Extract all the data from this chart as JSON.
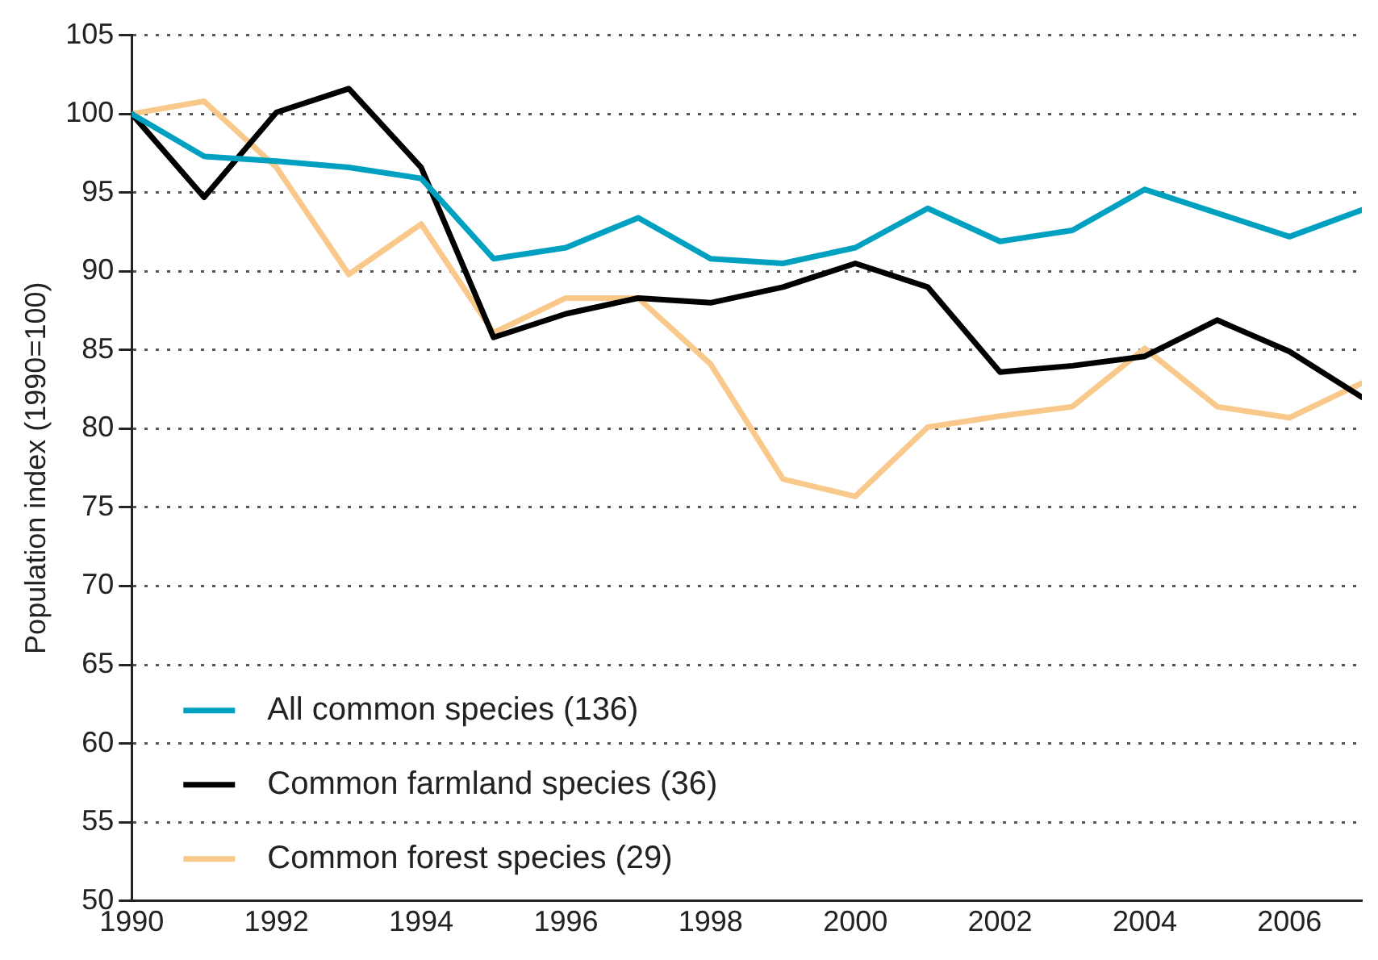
{
  "chart_data": {
    "type": "line",
    "ylabel": "Population index (1990=100)",
    "x": [
      1990,
      1991,
      1992,
      1993,
      1994,
      1995,
      1996,
      1997,
      1998,
      1999,
      2000,
      2001,
      2002,
      2003,
      2004,
      2005,
      2006,
      2007
    ],
    "xlim": [
      1990,
      2007
    ],
    "xticks": [
      1990,
      1992,
      1994,
      1996,
      1998,
      2000,
      2002,
      2004,
      2006
    ],
    "ylim": [
      50,
      105
    ],
    "yticks": [
      50,
      55,
      60,
      65,
      70,
      75,
      80,
      85,
      90,
      95,
      100,
      105
    ],
    "grid": "y",
    "legend": "bottom left",
    "marker": "none",
    "line_style": "solid",
    "series": [
      {
        "name": "All common species (136)",
        "color": "#00a0c0",
        "values": [
          100,
          97.3,
          97.0,
          96.6,
          95.9,
          90.8,
          91.5,
          93.4,
          90.8,
          90.5,
          91.5,
          94.0,
          91.9,
          92.6,
          95.2,
          93.7,
          92.2,
          93.9
        ]
      },
      {
        "name": "Common farmland species (36)",
        "color": "#000000",
        "values": [
          100,
          94.7,
          100.1,
          101.6,
          96.6,
          85.8,
          87.3,
          88.3,
          88.0,
          89.0,
          90.5,
          89.0,
          83.6,
          84.0,
          84.6,
          86.9,
          84.9,
          82.0
        ]
      },
      {
        "name": "Common forest species (29)",
        "color": "#f8c98a",
        "values": [
          100,
          100.8,
          96.6,
          89.8,
          93.0,
          86.1,
          88.3,
          88.3,
          84.1,
          76.8,
          75.7,
          80.1,
          80.8,
          81.4,
          85.1,
          81.4,
          80.7,
          82.9
        ]
      }
    ]
  }
}
